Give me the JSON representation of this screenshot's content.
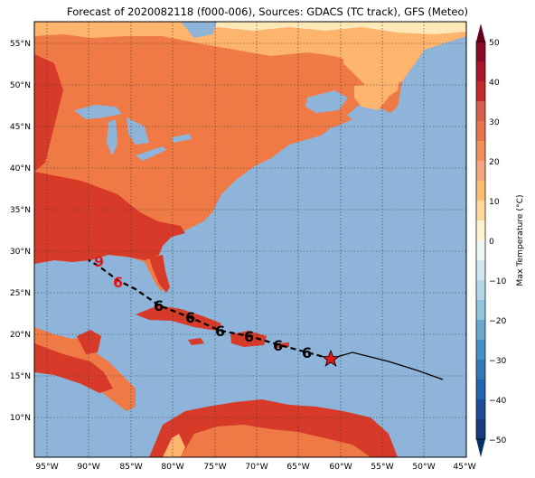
{
  "title": "Forecast of 2020082118 (f000-006), Sources: GDACS (TC track), GFS (Meteo)",
  "lat_labels": [
    "55°N",
    "50°N",
    "45°N",
    "40°N",
    "35°N",
    "30°N",
    "25°N",
    "20°N",
    "15°N",
    "10°N"
  ],
  "lon_labels": [
    "95°W",
    "90°W",
    "85°W",
    "80°W",
    "75°W",
    "70°W",
    "65°W",
    "60°W",
    "55°W",
    "50°W",
    "45°W"
  ],
  "colorbar": {
    "label": "Max Temperature (°C)",
    "ticks": [
      "50",
      "40",
      "30",
      "20",
      "10",
      "0",
      "−10",
      "−20",
      "−30",
      "−40",
      "−50"
    ],
    "colors": [
      "#67001f",
      "#b2182b",
      "#d6604d",
      "#f4a582",
      "#fddbc7",
      "#f7f7f7",
      "#d1e5f0",
      "#92c5de",
      "#4393c3",
      "#2166ac",
      "#053061"
    ]
  },
  "map_colors": {
    "ocean": "#8fb4da",
    "warm": "#f07a45",
    "hot": "#d73a28",
    "mild": "#fdb46c",
    "cool": "#fee8b8"
  },
  "storm_icons": [
    "tropical-storm-icon",
    "hurricane-icon"
  ]
}
